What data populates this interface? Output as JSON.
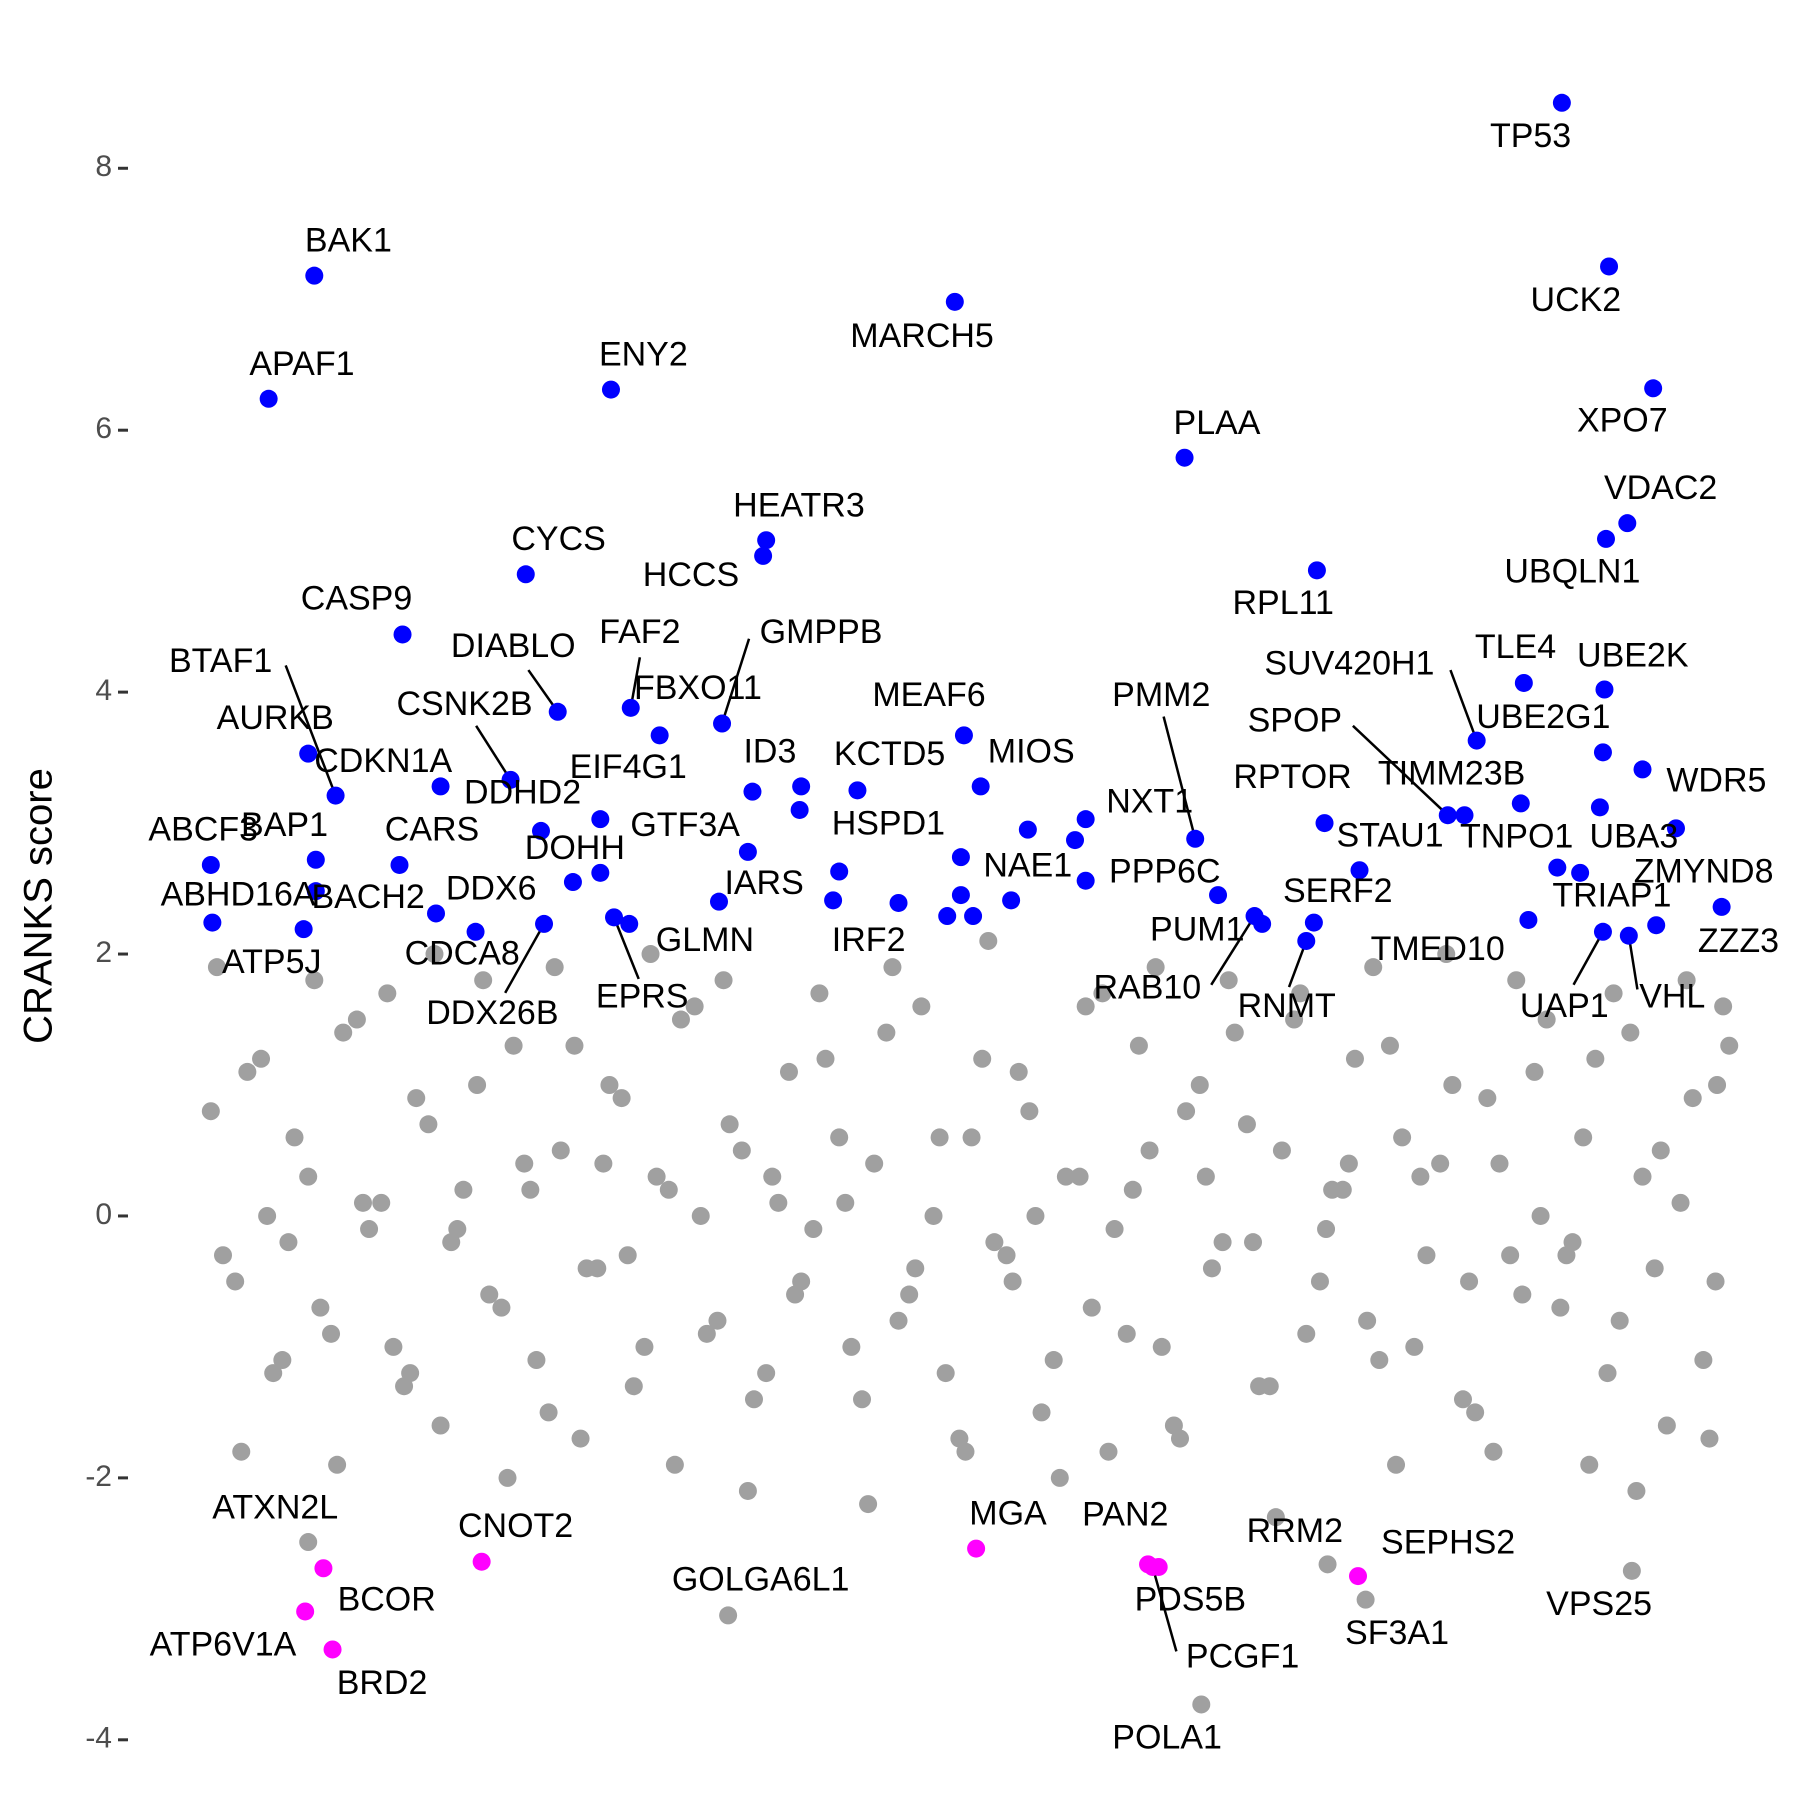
{
  "chart_data": {
    "type": "scatter",
    "y_label": "CRANKS score",
    "xlim": [
      -2,
      102
    ],
    "ylim": [
      -4.2,
      8.7
    ],
    "yticks": [
      -4,
      -2,
      0,
      2,
      4,
      6,
      8
    ],
    "grid": false,
    "series": [
      {
        "color": "#a0a0a0",
        "x": [
          0.5,
          2.1,
          3.8,
          5.2,
          6.9,
          8.4,
          10.1,
          11.7,
          13.2,
          14.8,
          16.3,
          18.0,
          19.6,
          21.1,
          22.7,
          24.4,
          25.9,
          27.5,
          29.0,
          30.6,
          32.3,
          33.8,
          35.4,
          37.0,
          38.5,
          40.1,
          41.8,
          43.3,
          44.9,
          46.4,
          48.0,
          49.7,
          51.2,
          52.8,
          54.3,
          55.9,
          57.6,
          59.1,
          60.7,
          62.2,
          63.8,
          65.5,
          67.0,
          68.6,
          70.1,
          71.7,
          73.4,
          74.9,
          76.5,
          78.0,
          79.6,
          81.3,
          82.8,
          84.4,
          85.9,
          87.5,
          89.2,
          90.7,
          92.3,
          93.8,
          95.4,
          97.1,
          98.6,
          99.5
        ],
        "values": [
          0.8,
          -0.5,
          1.2,
          -1.1,
          0.3,
          -0.9,
          1.5,
          0.1,
          -1.3,
          0.7,
          -0.2,
          1.0,
          -0.7,
          0.4,
          -1.5,
          1.3,
          -0.4,
          0.9,
          -1.0,
          0.2,
          1.6,
          -0.8,
          0.5,
          -1.2,
          1.1,
          -0.1,
          0.6,
          -1.4,
          1.4,
          -0.6,
          0.0,
          -1.7,
          1.2,
          -0.3,
          0.8,
          -1.1,
          0.3,
          1.7,
          -0.9,
          0.5,
          -1.6,
          1.0,
          -0.2,
          0.7,
          -1.3,
          1.5,
          -0.5,
          0.2,
          -0.8,
          1.3,
          -1.0,
          0.4,
          -1.4,
          0.9,
          -0.3,
          1.1,
          -0.7,
          0.6,
          -1.2,
          1.4,
          -0.4,
          0.1,
          -1.1,
          1.0
        ]
      },
      {
        "color": "#a0a0a0",
        "x": [
          1.3,
          2.9,
          4.6,
          6.0,
          7.7,
          9.2,
          10.9,
          12.5,
          14.0,
          15.6,
          17.1,
          18.8,
          20.4,
          21.9,
          23.5,
          25.2,
          26.7,
          28.3,
          29.8,
          31.4,
          33.1,
          34.6,
          36.2,
          37.8,
          39.3,
          40.9,
          42.6,
          44.1,
          45.7,
          47.2,
          48.8,
          50.5,
          52.0,
          53.6,
          55.1,
          56.7,
          58.4,
          59.9,
          61.5,
          63.0,
          64.6,
          66.3,
          67.8,
          69.4,
          70.9,
          72.5,
          74.2,
          75.7,
          77.3,
          78.8,
          80.4,
          82.1,
          83.6,
          85.2,
          86.7,
          88.3,
          90.0,
          91.5,
          93.1,
          94.6,
          96.2,
          97.9,
          99.4,
          100.3
        ],
        "values": [
          -0.3,
          1.1,
          -1.2,
          0.6,
          -0.7,
          1.4,
          -0.1,
          -1.0,
          0.9,
          -1.6,
          0.2,
          -0.6,
          1.3,
          -1.1,
          0.5,
          -0.4,
          1.0,
          -1.3,
          0.3,
          1.5,
          -0.9,
          0.7,
          -1.4,
          0.1,
          -0.5,
          1.2,
          -1.0,
          0.4,
          -0.8,
          1.6,
          -1.2,
          0.6,
          -0.2,
          1.1,
          -1.5,
          0.3,
          -0.7,
          -0.1,
          1.3,
          -1.0,
          0.8,
          -0.4,
          1.4,
          -1.3,
          0.5,
          -0.9,
          0.2,
          1.2,
          -1.1,
          0.6,
          -0.3,
          1.0,
          -1.5,
          0.4,
          -0.6,
          1.5,
          -0.2,
          1.2,
          -0.8,
          0.3,
          -1.6,
          0.9,
          -0.5,
          1.3
        ]
      },
      {
        "color": "#a0a0a0",
        "x": [
          0.9,
          2.5,
          4.2,
          5.6,
          7.3,
          8.8,
          10.5,
          12.1,
          13.6,
          15.2,
          16.7,
          18.4,
          20.0,
          21.5,
          23.1,
          24.8,
          26.3,
          27.9,
          29.4,
          31.0,
          32.7,
          34.2,
          35.8,
          37.4,
          38.9,
          40.5,
          42.2,
          43.7,
          45.3,
          46.8,
          48.4,
          50.1,
          51.6,
          53.2,
          54.7,
          56.3,
          58.0,
          59.5,
          61.1,
          62.6,
          64.2,
          65.9,
          67.4,
          69.0,
          70.5,
          72.1,
          73.8,
          75.3,
          76.9,
          78.4,
          80.0,
          81.7,
          83.2,
          84.8,
          86.3,
          87.9,
          89.6,
          91.1,
          92.7,
          94.2,
          95.8,
          97.5,
          99.0,
          99.9
        ],
        "values": [
          1.9,
          -1.8,
          0.0,
          -0.2,
          1.8,
          -1.9,
          0.1,
          1.7,
          -1.2,
          2.0,
          -0.1,
          1.8,
          -2.0,
          0.2,
          1.9,
          -1.7,
          0.4,
          -0.3,
          2.0,
          -1.9,
          0.0,
          1.8,
          -2.1,
          0.3,
          -0.6,
          1.7,
          0.1,
          -2.2,
          1.9,
          -0.4,
          0.6,
          -1.8,
          2.1,
          -0.5,
          0.0,
          -2.0,
          1.6,
          -1.8,
          0.2,
          1.9,
          -1.7,
          0.3,
          1.8,
          -0.2,
          -2.3,
          1.7,
          -0.1,
          0.4,
          1.9,
          -1.9,
          0.3,
          2.0,
          -0.5,
          -1.8,
          1.8,
          0.0,
          -0.3,
          -1.9,
          1.7,
          -2.1,
          0.5,
          1.8,
          -1.7,
          1.6
        ]
      },
      {
        "color": "#a0a0a0",
        "labels": [
          "ATXN2L",
          "GOLGA6L1",
          "POLA1",
          "SF3A1",
          "VPS25",
          "RRM2"
        ],
        "x": [
          6.9,
          34.5,
          65.6,
          76.4,
          93.9,
          73.9
        ],
        "values": [
          -2.49,
          -3.05,
          -3.73,
          -2.93,
          -2.71,
          -2.66
        ]
      },
      {
        "color": "#0000ff",
        "labels": [
          "TP53",
          "UCK2",
          "BAK1",
          "MARCH5",
          "APAF1",
          "ENY2",
          "XPO7",
          "PLAA",
          "VDAC2",
          "UBQLN1",
          "HEATR3",
          "HCCS",
          "CYCS",
          "RPL11",
          "CASP9",
          "GMPPB",
          "FAF2",
          "DIABLO",
          "BTAF1",
          "SUV420H1",
          "TLE4",
          "UBE2K",
          "MEAF6",
          "PMM2",
          "CSNK2B",
          "FBXO11",
          "AURKB",
          "SPOP",
          "UBE2G1",
          "CDKN1A",
          "DDHD2",
          "EIF4G1",
          "ID3",
          "KCTD5",
          "MIOS",
          "TNPO1",
          "TIMM23B",
          "WDR5",
          "RPTOR",
          "NXT1",
          "GTF3A",
          "BAP1",
          "CARS",
          "STAU1",
          "UBA3",
          "ABCF3",
          "HSPD1",
          "PPP6C",
          "NAE1",
          "IARS",
          "DDX6",
          "BACH2",
          "ABHD16A",
          "ZMYND8",
          "TRIAP1",
          "ZZZ3",
          "SERF2",
          "PUM1",
          "RAB10",
          "RNMT",
          "TMED10",
          "UAP1",
          "VHL",
          "IRF2",
          "GLMN",
          "EPRS",
          "DDX26B",
          "CDCA8",
          "ATP5J",
          "DOHH",
          null,
          null,
          null,
          null,
          null,
          null,
          null,
          null,
          null,
          null,
          null,
          null,
          null
        ],
        "x": [
          89.3,
          92.4,
          7.3,
          49.4,
          4.3,
          26.8,
          95.3,
          64.5,
          93.6,
          92.2,
          37.0,
          36.8,
          21.2,
          73.2,
          13.1,
          34.1,
          28.1,
          23.3,
          8.7,
          83.7,
          86.8,
          92.1,
          50.0,
          65.2,
          20.2,
          30.0,
          6.9,
          81.8,
          92.0,
          15.6,
          22.2,
          26.1,
          36.1,
          43.0,
          51.1,
          86.6,
          82.9,
          94.6,
          73.7,
          58.0,
          35.8,
          7.4,
          12.9,
          76.0,
          91.8,
          0.5,
          54.2,
          58.0,
          49.8,
          33.9,
          15.3,
          7.4,
          0.6,
          96.8,
          89.0,
          99.8,
          73.0,
          69.6,
          69.1,
          72.5,
          87.1,
          92.0,
          93.7,
          45.7,
          28.0,
          27.0,
          22.4,
          17.9,
          6.6,
          24.3,
          39.3,
          39.2,
          41.8,
          41.4,
          49.8,
          50.6,
          48.9,
          53.1,
          57.3,
          66.7,
          90.5,
          95.5,
          26.1
        ],
        "values": [
          8.5,
          7.25,
          7.18,
          6.98,
          6.24,
          6.31,
          6.32,
          5.79,
          5.29,
          5.17,
          5.16,
          5.04,
          4.9,
          4.93,
          4.44,
          3.76,
          3.88,
          3.85,
          3.21,
          3.63,
          4.07,
          4.02,
          3.67,
          2.88,
          3.33,
          3.67,
          3.53,
          3.06,
          3.54,
          3.28,
          2.94,
          3.03,
          3.24,
          3.25,
          3.28,
          3.15,
          3.06,
          3.41,
          3.0,
          3.03,
          2.78,
          2.72,
          2.68,
          2.64,
          3.12,
          2.68,
          2.95,
          2.56,
          2.74,
          2.4,
          2.31,
          2.48,
          2.24,
          2.96,
          2.66,
          2.36,
          2.24,
          2.23,
          2.29,
          2.1,
          2.26,
          2.17,
          2.14,
          2.39,
          2.23,
          2.28,
          2.23,
          2.17,
          2.19,
          2.55,
          3.28,
          3.1,
          2.63,
          2.41,
          2.45,
          2.29,
          2.29,
          2.41,
          2.87,
          2.45,
          2.62,
          2.22,
          2.62
        ]
      },
      {
        "color": "#ff00ff",
        "labels": [
          "BCOR",
          "ATP6V1A",
          "BRD2",
          "CNOT2",
          "MGA",
          "PAN2",
          "PDS5B",
          "PCGF1",
          "SEPHS2"
        ],
        "x": [
          7.9,
          6.7,
          8.5,
          18.3,
          50.8,
          62.1,
          62.8,
          62.4,
          75.9
        ],
        "values": [
          -2.69,
          -3.02,
          -3.31,
          -2.64,
          -2.54,
          -2.66,
          -2.68,
          -2.68,
          -2.75
        ]
      }
    ]
  }
}
